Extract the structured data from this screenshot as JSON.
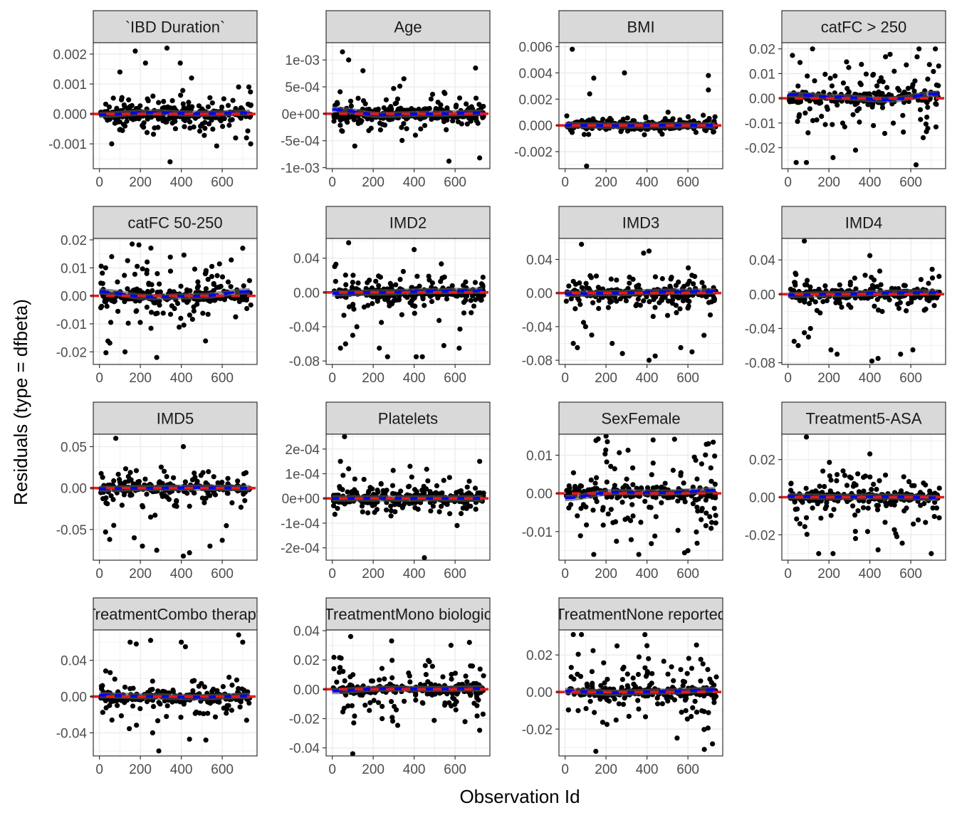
{
  "chart_data": {
    "type": "scatter",
    "xlabel": "Observation Id",
    "ylabel": "Residuals (type = dfbeta)",
    "xlim": [
      -30,
      770
    ],
    "x_ticks": [
      0,
      200,
      400,
      600
    ],
    "x_tick_labels": [
      "0",
      "200",
      "400",
      "600"
    ],
    "n_points_per_panel": 300,
    "panel_background": "#ffffff",
    "grid": true,
    "colors": {
      "points": "#000000",
      "reference_line": "#e41a1c",
      "smooth_line": "#0000ff",
      "smooth_ribbon": "#555555",
      "strip_fill": "#d9d9d9",
      "panel_border": "#333333",
      "grid": "#ebebeb"
    },
    "panels": [
      {
        "title": "`IBD Duration`",
        "ylim": [
          -0.00183,
          0.00238
        ],
        "ticks": [
          -0.001,
          0,
          0.001,
          0.002
        ],
        "tick_labels": [
          "-0.001",
          "0.000",
          "0.001",
          "0.002"
        ],
        "core_sd": 0.00013,
        "spread_sd": 0.00035,
        "smooth": [
          -3e-05,
          5e-05,
          1e-05,
          4e-05
        ],
        "outliers": [
          [
            100,
            0.0014
          ],
          [
            175,
            0.0021
          ],
          [
            225,
            0.0017
          ],
          [
            330,
            0.0022
          ],
          [
            395,
            0.0017
          ],
          [
            345,
            -0.0016
          ],
          [
            60,
            -0.001
          ],
          [
            680,
            0.0009
          ],
          [
            730,
            0.0009
          ],
          [
            450,
            0.0012
          ]
        ]
      },
      {
        "title": "Age",
        "ylim": [
          -0.00102,
          0.00132
        ],
        "ticks": [
          -0.001,
          -0.0005,
          0,
          0.0005,
          0.001
        ],
        "tick_labels": [
          "-1e-03",
          "-5e-04",
          "0e+00",
          "5e-04",
          "1e-03"
        ],
        "core_sd": 6e-05,
        "spread_sd": 0.00019,
        "smooth": [
          8e-05,
          -2e-05,
          0.0,
          2e-05
        ],
        "outliers": [
          [
            50,
            0.00115
          ],
          [
            80,
            0.001
          ],
          [
            150,
            0.0008
          ],
          [
            350,
            0.00065
          ],
          [
            700,
            0.00085
          ],
          [
            570,
            -0.00088
          ],
          [
            720,
            -0.00082
          ],
          [
            110,
            -0.0006
          ]
        ]
      },
      {
        "title": "BMI",
        "ylim": [
          -0.0033,
          0.0063
        ],
        "ticks": [
          -0.002,
          0,
          0.002,
          0.004,
          0.006
        ],
        "tick_labels": [
          "-0.002",
          "0.000",
          "0.002",
          "0.004",
          "0.006"
        ],
        "core_sd": 0.00013,
        "spread_sd": 0.00038,
        "smooth": [
          2e-05,
          -2e-05,
          1e-05,
          0.0
        ],
        "outliers": [
          [
            35,
            0.0058
          ],
          [
            140,
            0.0036
          ],
          [
            290,
            0.004
          ],
          [
            700,
            0.0038
          ],
          [
            700,
            0.0027
          ],
          [
            105,
            -0.0031
          ],
          [
            120,
            0.0024
          ]
        ]
      },
      {
        "title": "catFC > 250",
        "ylim": [
          -0.0285,
          0.0225
        ],
        "ticks": [
          -0.02,
          -0.01,
          0,
          0.01,
          0.02
        ],
        "tick_labels": [
          "-0.02",
          "-0.01",
          "0.00",
          "0.01",
          "0.02"
        ],
        "core_sd": 0.0012,
        "spread_sd": 0.0085,
        "smooth": [
          0.0015,
          0.0005,
          -0.0006,
          0.0018
        ],
        "outliers": [
          [
            40,
            -0.026
          ],
          [
            120,
            0.02
          ],
          [
            90,
            -0.026
          ],
          [
            640,
            0.02
          ],
          [
            720,
            0.02
          ],
          [
            220,
            -0.024
          ],
          [
            330,
            -0.021
          ]
        ]
      },
      {
        "title": "catFC 50-250",
        "ylim": [
          -0.0245,
          0.0205
        ],
        "ticks": [
          -0.02,
          -0.01,
          0,
          0.01,
          0.02
        ],
        "tick_labels": [
          "-0.02",
          "-0.01",
          "0.00",
          "0.01",
          "0.02"
        ],
        "core_sd": 0.0011,
        "spread_sd": 0.0075,
        "smooth": [
          0.0015,
          -0.0004,
          -0.0001,
          0.0016
        ],
        "outliers": [
          [
            160,
            0.0185
          ],
          [
            280,
            -0.022
          ],
          [
            125,
            -0.02
          ],
          [
            700,
            0.017
          ],
          [
            60,
            0.014
          ]
        ]
      },
      {
        "title": "IMD2",
        "ylim": [
          -0.084,
          0.063
        ],
        "ticks": [
          -0.08,
          -0.04,
          0,
          0.04
        ],
        "tick_labels": [
          "-0.08",
          "-0.04",
          "0.00",
          "0.04"
        ],
        "core_sd": 0.0025,
        "spread_sd": 0.012,
        "smooth": [
          -0.001,
          0.0,
          0.0015,
          0.002
        ],
        "outliers": [
          [
            80,
            0.058
          ],
          [
            400,
            0.05
          ],
          [
            40,
            -0.065
          ],
          [
            65,
            -0.06
          ],
          [
            100,
            -0.05
          ],
          [
            120,
            -0.04
          ],
          [
            230,
            -0.065
          ],
          [
            270,
            -0.075
          ],
          [
            410,
            -0.075
          ],
          [
            440,
            -0.075
          ],
          [
            545,
            -0.062
          ],
          [
            620,
            -0.065
          ],
          [
            240,
            -0.035
          ]
        ]
      },
      {
        "title": "IMD3",
        "ylim": [
          -0.085,
          0.065
        ],
        "ticks": [
          -0.08,
          -0.04,
          0,
          0.04
        ],
        "tick_labels": [
          "-0.08",
          "-0.04",
          "0.00",
          "0.04"
        ],
        "core_sd": 0.0025,
        "spread_sd": 0.012,
        "smooth": [
          -0.001,
          0.0,
          0.0015,
          0.002
        ],
        "outliers": [
          [
            80,
            0.058
          ],
          [
            410,
            0.05
          ],
          [
            40,
            -0.06
          ],
          [
            60,
            -0.065
          ],
          [
            100,
            -0.04
          ],
          [
            130,
            -0.05
          ],
          [
            230,
            -0.06
          ],
          [
            280,
            -0.072
          ],
          [
            410,
            -0.08
          ],
          [
            440,
            -0.075
          ],
          [
            565,
            -0.065
          ],
          [
            620,
            -0.07
          ],
          [
            90,
            -0.035
          ]
        ]
      },
      {
        "title": "IMD4",
        "ylim": [
          -0.082,
          0.065
        ],
        "ticks": [
          -0.08,
          -0.04,
          0,
          0.04
        ],
        "tick_labels": [
          "-0.08",
          "-0.04",
          "0.00",
          "0.04"
        ],
        "core_sd": 0.0025,
        "spread_sd": 0.012,
        "smooth": [
          -0.001,
          0.0,
          0.0015,
          0.002
        ],
        "outliers": [
          [
            80,
            0.062
          ],
          [
            400,
            0.045
          ],
          [
            30,
            -0.055
          ],
          [
            50,
            -0.06
          ],
          [
            80,
            -0.045
          ],
          [
            100,
            -0.05
          ],
          [
            210,
            -0.065
          ],
          [
            240,
            -0.07
          ],
          [
            410,
            -0.078
          ],
          [
            440,
            -0.075
          ],
          [
            550,
            -0.07
          ],
          [
            610,
            -0.065
          ],
          [
            110,
            -0.04
          ]
        ]
      },
      {
        "title": "IMD5",
        "ylim": [
          -0.087,
          0.065
        ],
        "ticks": [
          -0.05,
          0,
          0.05
        ],
        "tick_labels": [
          "-0.05",
          "0.00",
          "0.05"
        ],
        "core_sd": 0.0025,
        "spread_sd": 0.013,
        "smooth": [
          -0.001,
          0.0,
          0.0005,
          0.0
        ],
        "outliers": [
          [
            80,
            0.06
          ],
          [
            410,
            0.05
          ],
          [
            30,
            -0.053
          ],
          [
            50,
            -0.062
          ],
          [
            70,
            -0.045
          ],
          [
            210,
            -0.07
          ],
          [
            280,
            -0.075
          ],
          [
            410,
            -0.082
          ],
          [
            440,
            -0.078
          ],
          [
            540,
            -0.07
          ],
          [
            600,
            -0.063
          ],
          [
            170,
            -0.06
          ],
          [
            250,
            -0.035
          ]
        ]
      },
      {
        "title": "Platelets",
        "ylim": [
          -0.00025,
          0.00026
        ],
        "ticks": [
          -0.0002,
          -0.0001,
          0,
          0.0001,
          0.0002
        ],
        "tick_labels": [
          "-2e-04",
          "-1e-04",
          "0e+00",
          "1e-04",
          "2e-04"
        ],
        "core_sd": 1.1e-05,
        "spread_sd": 4e-05,
        "smooth": [
          0.0,
          0.0,
          0.0,
          0.0
        ],
        "outliers": [
          [
            60,
            0.00025
          ],
          [
            450,
            -0.00024
          ],
          [
            40,
            0.00015
          ],
          [
            720,
            0.00015
          ],
          [
            80,
            0.00012
          ],
          [
            380,
            0.00013
          ]
        ]
      },
      {
        "title": "SexFemale",
        "ylim": [
          -0.0175,
          0.0155
        ],
        "ticks": [
          -0.01,
          0,
          0.01
        ],
        "tick_labels": [
          "-0.01",
          "0.00",
          "0.01"
        ],
        "core_sd": 0.0008,
        "spread_sd": 0.0075,
        "smooth": [
          -0.0012,
          0.0003,
          0.0002,
          0.0008
        ],
        "outliers": [
          [
            200,
            0.015
          ],
          [
            430,
            0.014
          ],
          [
            700,
            0.013
          ],
          [
            140,
            -0.016
          ],
          [
            360,
            -0.016
          ],
          [
            600,
            -0.015
          ]
        ]
      },
      {
        "title": "Treatment5-ASA",
        "ylim": [
          -0.0335,
          0.0335
        ],
        "ticks": [
          -0.02,
          0,
          0.02
        ],
        "tick_labels": [
          "-0.02",
          "0.00",
          "0.02"
        ],
        "core_sd": 0.0012,
        "spread_sd": 0.0095,
        "smooth": [
          0.0005,
          0.0001,
          0.0003,
          -0.0004
        ],
        "outliers": [
          [
            90,
            0.032
          ],
          [
            400,
            0.023
          ],
          [
            150,
            -0.03
          ],
          [
            220,
            -0.03
          ],
          [
            440,
            -0.028
          ],
          [
            700,
            -0.03
          ],
          [
            330,
            -0.022
          ]
        ]
      },
      {
        "title": "TreatmentCombo therapy",
        "ylim": [
          -0.0655,
          0.0735
        ],
        "ticks": [
          -0.04,
          0,
          0.04
        ],
        "tick_labels": [
          "-0.04",
          "0.00",
          "0.04"
        ],
        "core_sd": 0.002,
        "spread_sd": 0.012,
        "smooth": [
          0.0015,
          0.0002,
          -0.0008,
          0.0008
        ],
        "outliers": [
          [
            150,
            0.06
          ],
          [
            180,
            0.058
          ],
          [
            250,
            0.062
          ],
          [
            400,
            0.06
          ],
          [
            420,
            0.055
          ],
          [
            680,
            0.068
          ],
          [
            700,
            0.06
          ],
          [
            290,
            -0.06
          ],
          [
            440,
            -0.047
          ],
          [
            520,
            -0.048
          ],
          [
            260,
            -0.04
          ]
        ]
      },
      {
        "title": "TreatmentMono biologic",
        "ylim": [
          -0.0455,
          0.0405
        ],
        "ticks": [
          -0.04,
          -0.02,
          0,
          0.02,
          0.04
        ],
        "tick_labels": [
          "-0.04",
          "-0.02",
          "0.00",
          "0.02",
          "0.04"
        ],
        "core_sd": 0.0015,
        "spread_sd": 0.0115,
        "smooth": [
          -0.0012,
          0.0004,
          0.0002,
          0.0006
        ],
        "outliers": [
          [
            90,
            0.036
          ],
          [
            100,
            -0.044
          ],
          [
            290,
            0.033
          ],
          [
            580,
            0.03
          ],
          [
            670,
            0.032
          ],
          [
            720,
            -0.028
          ]
        ]
      },
      {
        "title": "TreatmentNone reported",
        "ylim": [
          -0.0345,
          0.0335
        ],
        "ticks": [
          -0.02,
          0,
          0.02
        ],
        "tick_labels": [
          "-0.02",
          "0.00",
          "0.02"
        ],
        "core_sd": 0.0012,
        "spread_sd": 0.0095,
        "smooth": [
          0.0005,
          -0.0004,
          0.0002,
          0.0012
        ],
        "outliers": [
          [
            40,
            0.031
          ],
          [
            80,
            0.031
          ],
          [
            150,
            -0.032
          ],
          [
            720,
            -0.028
          ],
          [
            680,
            -0.031
          ],
          [
            400,
            0.025
          ]
        ]
      }
    ]
  }
}
